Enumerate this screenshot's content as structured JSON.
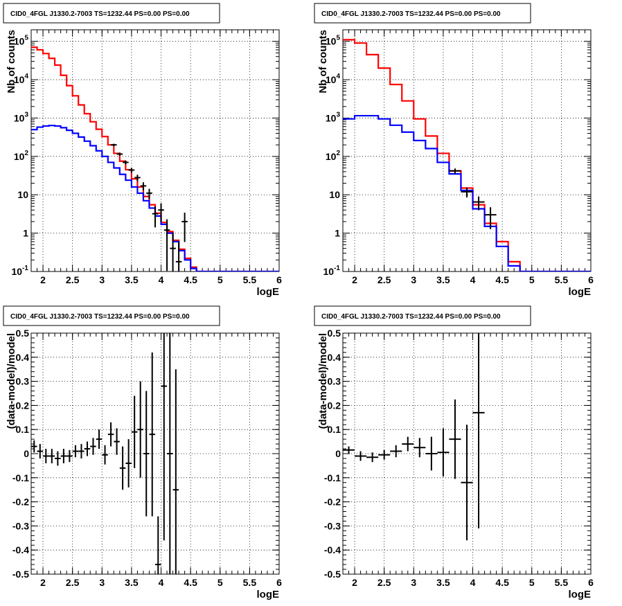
{
  "colors": {
    "model_total": "#ff0000",
    "model_source": "#0000ff",
    "data": "#000000",
    "grid": "#000000"
  },
  "chart_data": [
    {
      "id": "top-left",
      "type": "line",
      "title": "CID0_4FGL J1330.2-7003 TS=1232.44 PS=0.00 PS=0.00",
      "xlabel": "logE",
      "ylabel": "Nb of counts",
      "xlim": [
        1.8,
        6.0
      ],
      "ylim": [
        0.1,
        200000
      ],
      "yscale": "log",
      "grid": true,
      "xticks": [
        "2",
        "2.5",
        "3",
        "3.5",
        "4",
        "4.5",
        "5",
        "5.5",
        "6"
      ],
      "yticks": [
        "10^-1",
        "1",
        "10",
        "10^2",
        "10^3",
        "10^4",
        "10^5"
      ],
      "series": [
        {
          "x": [
            1.8,
            1.9,
            2.0,
            2.1,
            2.2,
            2.3,
            2.4,
            2.5,
            2.6,
            2.7,
            2.8,
            2.9,
            3.0,
            3.1,
            3.2,
            3.3,
            3.4,
            3.5,
            3.6,
            3.7,
            3.8,
            3.9,
            4.0,
            4.1,
            4.2,
            4.3,
            4.4,
            4.5,
            4.6,
            6.0
          ],
          "values": [
            70000,
            60000,
            48000,
            36000,
            24000,
            13000,
            7000,
            3800,
            2200,
            1300,
            800,
            510,
            330,
            200,
            120,
            75,
            45,
            26,
            16,
            9,
            5.5,
            3.3,
            1.9,
            1.1,
            0.65,
            0.38,
            0.22,
            0.13,
            0.1,
            0.1
          ]
        },
        {
          "x": [
            1.8,
            1.9,
            2.0,
            2.1,
            2.2,
            2.3,
            2.4,
            2.5,
            2.6,
            2.7,
            2.8,
            2.9,
            3.0,
            3.1,
            3.2,
            3.3,
            3.4,
            3.5,
            3.6,
            3.7,
            3.8,
            3.9,
            4.0,
            4.1,
            4.2,
            4.3,
            4.4,
            4.5,
            4.6,
            6.0
          ],
          "values": [
            500,
            580,
            620,
            640,
            620,
            560,
            480,
            400,
            320,
            250,
            190,
            140,
            100,
            70,
            50,
            34,
            24,
            16,
            11,
            7,
            4.5,
            2.8,
            1.7,
            1.0,
            0.6,
            0.35,
            0.2,
            0.12,
            0.1,
            0.1
          ]
        },
        {
          "x": [
            3.2,
            3.3,
            3.4,
            3.5,
            3.6,
            3.7,
            3.8,
            3.9,
            4.0,
            4.1,
            4.2,
            4.3,
            4.4
          ],
          "values": [
            200,
            115,
            70,
            44,
            28,
            17,
            11,
            3.2,
            4.0,
            1.2,
            0.4,
            0.18,
            2.0
          ]
        }
      ]
    },
    {
      "id": "top-right",
      "type": "line",
      "title": "CID0_4FGL J1330.2-7003 TS=1232.44 PS=0.00 PS=0.00",
      "xlabel": "logE",
      "ylabel": "Nb of counts",
      "xlim": [
        1.8,
        6.0
      ],
      "ylim": [
        0.1,
        200000
      ],
      "yscale": "log",
      "grid": true,
      "xticks": [
        "2",
        "2.5",
        "3",
        "3.5",
        "4",
        "4.5",
        "5",
        "5.5",
        "6"
      ],
      "yticks": [
        "10^-1",
        "1",
        "10",
        "10^2",
        "10^3",
        "10^4",
        "10^5"
      ],
      "series": [
        {
          "x": [
            1.8,
            2.0,
            2.2,
            2.4,
            2.6,
            2.8,
            3.0,
            3.2,
            3.4,
            3.6,
            3.8,
            4.0,
            4.2,
            4.4,
            4.6,
            4.8,
            6.0
          ],
          "values": [
            110000,
            90000,
            45000,
            20000,
            7500,
            2800,
            950,
            340,
            120,
            42,
            15,
            5.5,
            1.8,
            0.6,
            0.18,
            0.1,
            0.1
          ]
        },
        {
          "x": [
            1.8,
            2.0,
            2.2,
            2.4,
            2.6,
            2.8,
            3.0,
            3.2,
            3.4,
            3.6,
            3.8,
            4.0,
            4.2,
            4.4,
            4.6,
            4.8,
            6.0
          ],
          "values": [
            950,
            1150,
            1150,
            950,
            650,
            430,
            260,
            160,
            70,
            35,
            13,
            4.3,
            1.5,
            0.45,
            0.14,
            0.1,
            0.1
          ]
        },
        {
          "x": [
            3.7,
            3.9,
            4.1,
            4.3
          ],
          "values": [
            42,
            12,
            6.5,
            3
          ]
        }
      ]
    },
    {
      "id": "bottom-left",
      "type": "scatter",
      "title": "CID0_4FGL J1330.2-7003 TS=1232.44 PS=0.00 PS=0.00",
      "xlabel": "logE",
      "ylabel": "(data-model)/model",
      "xlim": [
        1.8,
        6.0
      ],
      "ylim": [
        -0.5,
        0.5
      ],
      "grid": true,
      "xticks": [
        "2",
        "2.5",
        "3",
        "3.5",
        "4",
        "4.5",
        "5",
        "5.5",
        "6"
      ],
      "yticks": [
        "-0.5",
        "-0.4",
        "-0.3",
        "-0.2",
        "-0.1",
        "0",
        "0.1",
        "0.2",
        "0.3",
        "0.4",
        "0.5"
      ],
      "series": [
        {
          "x": [
            1.85,
            1.95,
            2.05,
            2.15,
            2.25,
            2.35,
            2.45,
            2.55,
            2.65,
            2.75,
            2.85,
            2.95,
            3.05,
            3.15,
            3.25,
            3.35,
            3.45,
            3.55,
            3.65,
            3.75,
            3.85,
            3.95,
            4.05,
            4.15,
            4.25
          ],
          "values": [
            0.03,
            0.01,
            -0.01,
            -0.01,
            -0.02,
            -0.01,
            -0.01,
            0.01,
            0.01,
            0.02,
            0.03,
            0.06,
            -0.005,
            0.08,
            0.05,
            -0.06,
            -0.04,
            0.09,
            0.1,
            0.0,
            0.08,
            -0.46,
            0.28,
            0.0,
            -0.15
          ],
          "errors": [
            0.025,
            0.03,
            0.03,
            0.03,
            0.03,
            0.03,
            0.025,
            0.025,
            0.03,
            0.03,
            0.035,
            0.04,
            0.04,
            0.05,
            0.055,
            0.09,
            0.1,
            0.15,
            0.2,
            0.26,
            0.34,
            0.2,
            0.64,
            0.5,
            0.5
          ]
        }
      ]
    },
    {
      "id": "bottom-right",
      "type": "scatter",
      "title": "CID0_4FGL J1330.2-7003 TS=1232.44 PS=0.00 PS=0.00",
      "xlabel": "logE",
      "ylabel": "(data-model)/model",
      "xlim": [
        1.8,
        6.0
      ],
      "ylim": [
        -0.5,
        0.5
      ],
      "grid": true,
      "xticks": [
        "2",
        "2.5",
        "3",
        "3.5",
        "4",
        "4.5",
        "5",
        "5.5",
        "6"
      ],
      "yticks": [
        "-0.5",
        "-0.4",
        "-0.3",
        "-0.2",
        "-0.1",
        "0",
        "0.1",
        "0.2",
        "0.3",
        "0.4",
        "0.5"
      ],
      "series": [
        {
          "x": [
            1.9,
            2.1,
            2.3,
            2.5,
            2.7,
            2.9,
            3.1,
            3.3,
            3.5,
            3.7,
            3.9,
            4.1
          ],
          "values": [
            0.015,
            -0.01,
            -0.015,
            -0.005,
            0.01,
            0.04,
            0.025,
            0.0,
            0.005,
            0.06,
            -0.12,
            0.17
          ],
          "errors": [
            0.015,
            0.02,
            0.02,
            0.02,
            0.025,
            0.03,
            0.04,
            0.07,
            0.1,
            0.165,
            0.24,
            0.48
          ]
        }
      ]
    }
  ]
}
